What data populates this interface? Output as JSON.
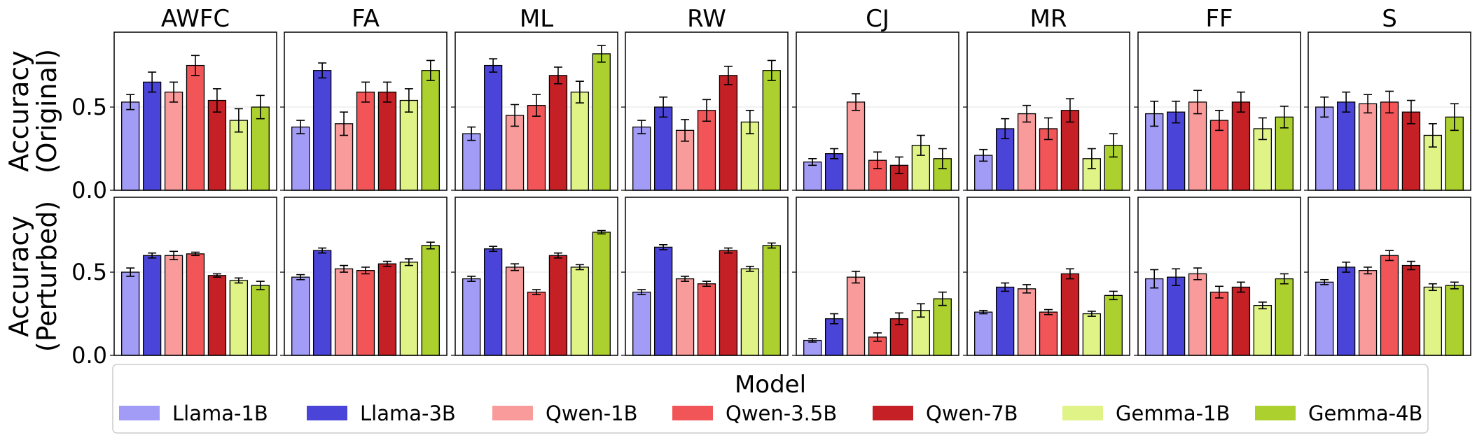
{
  "chart_data": {
    "type": "bar",
    "panel_titles": [
      "AWFC",
      "FA",
      "ML",
      "RW",
      "CJ",
      "MR",
      "FF",
      "S"
    ],
    "model_names": [
      "Llama-1B",
      "Llama-3B",
      "Qwen-1B",
      "Qwen-3.5B",
      "Qwen-7B",
      "Gemma-1B",
      "Gemma-4B"
    ],
    "model_colors": [
      "#a39cf7",
      "#4b44d9",
      "#f99b9b",
      "#f15557",
      "#c42025",
      "#e0f386",
      "#acd12f"
    ],
    "legend_title": "Model",
    "ylim": [
      0,
      0.95
    ],
    "yticks": [
      0.0,
      0.5
    ],
    "ytick_labels": [
      "0.0",
      "0.5"
    ],
    "grid": "horizontal",
    "rows": [
      {
        "ylabel_line1": "Accuracy",
        "ylabel_line2": "(Original)",
        "panels": [
          {
            "values": [
              0.53,
              0.65,
              0.59,
              0.75,
              0.54,
              0.42,
              0.5
            ],
            "err": [
              0.045,
              0.06,
              0.06,
              0.06,
              0.07,
              0.07,
              0.07
            ]
          },
          {
            "values": [
              0.38,
              0.72,
              0.4,
              0.59,
              0.59,
              0.54,
              0.72
            ],
            "err": [
              0.04,
              0.045,
              0.07,
              0.06,
              0.06,
              0.07,
              0.06
            ]
          },
          {
            "values": [
              0.34,
              0.75,
              0.45,
              0.51,
              0.69,
              0.59,
              0.82
            ],
            "err": [
              0.04,
              0.04,
              0.065,
              0.065,
              0.05,
              0.065,
              0.05
            ]
          },
          {
            "values": [
              0.38,
              0.5,
              0.36,
              0.48,
              0.69,
              0.41,
              0.72
            ],
            "err": [
              0.04,
              0.06,
              0.065,
              0.065,
              0.055,
              0.07,
              0.06
            ]
          },
          {
            "values": [
              0.17,
              0.22,
              0.53,
              0.18,
              0.15,
              0.27,
              0.19
            ],
            "err": [
              0.02,
              0.03,
              0.05,
              0.05,
              0.05,
              0.06,
              0.06
            ]
          },
          {
            "values": [
              0.21,
              0.37,
              0.46,
              0.37,
              0.48,
              0.19,
              0.27
            ],
            "err": [
              0.035,
              0.06,
              0.05,
              0.065,
              0.07,
              0.06,
              0.07
            ]
          },
          {
            "values": [
              0.46,
              0.47,
              0.53,
              0.42,
              0.53,
              0.37,
              0.44
            ],
            "err": [
              0.075,
              0.065,
              0.07,
              0.06,
              0.06,
              0.065,
              0.065
            ]
          },
          {
            "values": [
              0.5,
              0.53,
              0.52,
              0.53,
              0.47,
              0.33,
              0.44
            ],
            "err": [
              0.06,
              0.06,
              0.055,
              0.065,
              0.07,
              0.07,
              0.08
            ]
          }
        ]
      },
      {
        "ylabel_line1": "Accuracy",
        "ylabel_line2": "(Perturbed)",
        "panels": [
          {
            "values": [
              0.5,
              0.6,
              0.6,
              0.61,
              0.48,
              0.45,
              0.42
            ],
            "err": [
              0.025,
              0.015,
              0.025,
              0.01,
              0.01,
              0.015,
              0.025
            ]
          },
          {
            "values": [
              0.47,
              0.63,
              0.52,
              0.51,
              0.55,
              0.56,
              0.66
            ],
            "err": [
              0.015,
              0.015,
              0.02,
              0.02,
              0.015,
              0.02,
              0.02
            ]
          },
          {
            "values": [
              0.46,
              0.64,
              0.53,
              0.38,
              0.6,
              0.53,
              0.74
            ],
            "err": [
              0.015,
              0.015,
              0.02,
              0.015,
              0.015,
              0.015,
              0.01
            ]
          },
          {
            "values": [
              0.38,
              0.65,
              0.46,
              0.43,
              0.63,
              0.52,
              0.66
            ],
            "err": [
              0.015,
              0.015,
              0.015,
              0.015,
              0.015,
              0.015,
              0.015
            ]
          },
          {
            "values": [
              0.09,
              0.22,
              0.47,
              0.11,
              0.22,
              0.27,
              0.34
            ],
            "err": [
              0.01,
              0.03,
              0.035,
              0.025,
              0.035,
              0.04,
              0.04
            ]
          },
          {
            "values": [
              0.26,
              0.41,
              0.4,
              0.26,
              0.49,
              0.25,
              0.36
            ],
            "err": [
              0.01,
              0.025,
              0.025,
              0.015,
              0.03,
              0.015,
              0.025
            ]
          },
          {
            "values": [
              0.46,
              0.47,
              0.49,
              0.38,
              0.41,
              0.3,
              0.46
            ],
            "err": [
              0.055,
              0.05,
              0.035,
              0.035,
              0.03,
              0.02,
              0.03
            ]
          },
          {
            "values": [
              0.44,
              0.53,
              0.51,
              0.6,
              0.54,
              0.41,
              0.42
            ],
            "err": [
              0.015,
              0.03,
              0.02,
              0.03,
              0.025,
              0.02,
              0.02
            ]
          }
        ]
      }
    ]
  }
}
